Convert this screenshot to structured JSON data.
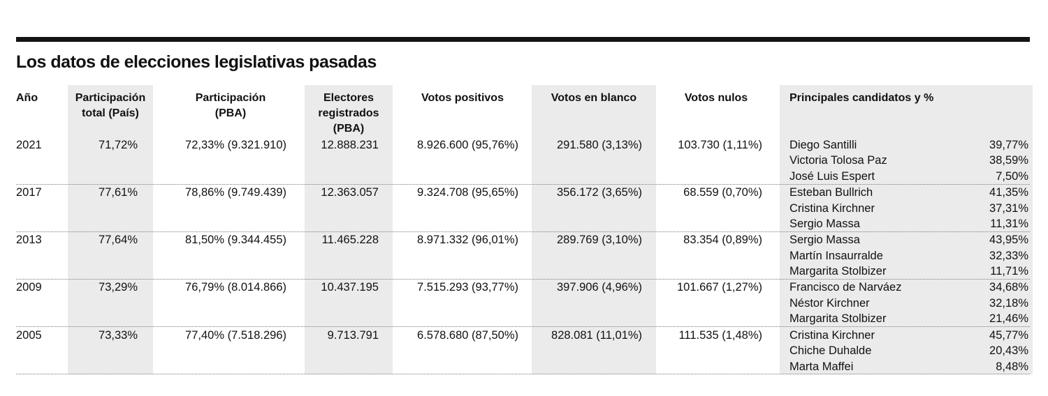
{
  "title": "Los datos de elecciones legislativas pasadas",
  "headers": {
    "year": "Año",
    "part_pais": "Participación total (País)",
    "part_pba": "Participación (PBA)",
    "electores": "Electores registrados (PBA)",
    "positivos": "Votos positivos",
    "blanco": "Votos en blanco",
    "nulos": "Votos nulos",
    "candidatos": "Principales candidatos y %"
  },
  "rows": [
    {
      "year": "2021",
      "part_pais": "71,72%",
      "part_pba": "72,33% (9.321.910)",
      "electores": "12.888.231",
      "positivos": "8.926.600 (95,76%)",
      "blanco": "291.580 (3,13%)",
      "nulos": "103.730 (1,11%)",
      "candidates": [
        {
          "name": "Diego Santilli",
          "pct": "39,77%"
        },
        {
          "name": "Victoria Tolosa Paz",
          "pct": "38,59%"
        },
        {
          "name": "José Luis Espert",
          "pct": "7,50%"
        }
      ]
    },
    {
      "year": "2017",
      "part_pais": "77,61%",
      "part_pba": "78,86% (9.749.439)",
      "electores": "12.363.057",
      "positivos": "9.324.708 (95,65%)",
      "blanco": "356.172 (3,65%)",
      "nulos": "68.559 (0,70%)",
      "candidates": [
        {
          "name": "Esteban Bullrich",
          "pct": "41,35%"
        },
        {
          "name": "Cristina Kirchner",
          "pct": "37,31%"
        },
        {
          "name": "Sergio Massa",
          "pct": "11,31%"
        }
      ]
    },
    {
      "year": "2013",
      "part_pais": "77,64%",
      "part_pba": "81,50% (9.344.455)",
      "electores": "11.465.228",
      "positivos": "8.971.332 (96,01%)",
      "blanco": "289.769 (3,10%)",
      "nulos": "83.354 (0,89%)",
      "candidates": [
        {
          "name": "Sergio Massa",
          "pct": "43,95%"
        },
        {
          "name": "Martín Insaurralde",
          "pct": "32,33%"
        },
        {
          "name": "Margarita Stolbizer",
          "pct": "11,71%"
        }
      ]
    },
    {
      "year": "2009",
      "part_pais": "73,29%",
      "part_pba": "76,79% (8.014.866)",
      "electores": "10.437.195",
      "positivos": "7.515.293 (93,77%)",
      "blanco": "397.906 (4,96%)",
      "nulos": "101.667 (1,27%)",
      "candidates": [
        {
          "name": "Francisco de Narváez",
          "pct": "34,68%"
        },
        {
          "name": "Néstor Kirchner",
          "pct": "32,18%"
        },
        {
          "name": "Margarita Stolbizer",
          "pct": "21,46%"
        }
      ]
    },
    {
      "year": "2005",
      "part_pais": "73,33%",
      "part_pba": "77,40% (7.518.296)",
      "electores": "9.713.791",
      "positivos": "6.578.680 (87,50%)",
      "blanco": "828.081 (11,01%)",
      "nulos": "111.535 (1,48%)",
      "candidates": [
        {
          "name": "Cristina Kirchner",
          "pct": "45,77%"
        },
        {
          "name": "Chiche Duhalde",
          "pct": "20,43%"
        },
        {
          "name": "Marta Maffei",
          "pct": "8,48%"
        }
      ]
    }
  ]
}
